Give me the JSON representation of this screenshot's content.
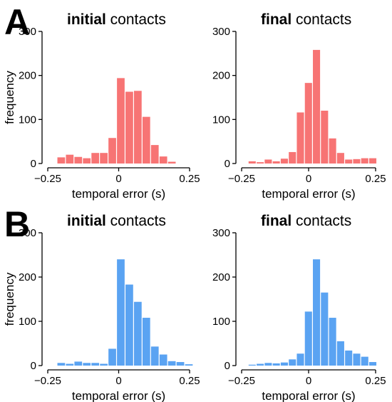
{
  "panels": [
    {
      "letter": "A"
    },
    {
      "letter": "B"
    }
  ],
  "colors": {
    "row_A": "#f77474",
    "row_B": "#5aa3f2"
  },
  "chart_data": [
    {
      "panel": "A",
      "type": "bar",
      "color": "#f77474",
      "title_bold": "initial",
      "title_rest": " contacts",
      "xlabel": "temporal error (s)",
      "ylabel": "frequency",
      "xlim": [
        -0.25,
        0.25
      ],
      "ylim": [
        0,
        300
      ],
      "xticks": [
        -0.25,
        0,
        0.25
      ],
      "xtick_labels": [
        "−0.25",
        "0",
        "0.25"
      ],
      "yticks": [
        0,
        100,
        200,
        300
      ],
      "ytick_labels": [
        "0",
        "100",
        "200",
        "300"
      ],
      "bin_width": 0.03,
      "bin_starts": [
        -0.216,
        -0.186,
        -0.156,
        -0.126,
        -0.096,
        -0.066,
        -0.036,
        -0.006,
        0.024,
        0.054,
        0.084,
        0.114,
        0.144,
        0.174
      ],
      "values": [
        14,
        20,
        15,
        12,
        24,
        24,
        58,
        194,
        163,
        165,
        106,
        42,
        16,
        4
      ]
    },
    {
      "panel": "A",
      "type": "bar",
      "color": "#f77474",
      "title_bold": "final",
      "title_rest": " contacts",
      "xlabel": "temporal error (s)",
      "ylabel": "",
      "xlim": [
        -0.25,
        0.25
      ],
      "ylim": [
        0,
        300
      ],
      "xticks": [
        -0.25,
        0,
        0.25
      ],
      "xtick_labels": [
        "−0.25",
        "0",
        "0.25"
      ],
      "yticks": [
        0,
        100,
        200,
        300
      ],
      "ytick_labels": [
        "0",
        "100",
        "200",
        "300"
      ],
      "bin_width": 0.03,
      "bin_starts": [
        -0.224,
        -0.194,
        -0.164,
        -0.134,
        -0.104,
        -0.074,
        -0.044,
        -0.014,
        0.016,
        0.046,
        0.076,
        0.106,
        0.136,
        0.166,
        0.196,
        0.226
      ],
      "values": [
        5,
        3,
        9,
        5,
        11,
        26,
        116,
        183,
        258,
        120,
        57,
        24,
        9,
        10,
        12,
        12
      ]
    },
    {
      "panel": "B",
      "type": "bar",
      "color": "#5aa3f2",
      "title_bold": "initial",
      "title_rest": " contacts",
      "xlabel": "temporal error (s)",
      "ylabel": "frequency",
      "xlim": [
        -0.25,
        0.25
      ],
      "ylim": [
        0,
        300
      ],
      "xticks": [
        -0.25,
        0,
        0.25
      ],
      "xtick_labels": [
        "−0.25",
        "0",
        "0.25"
      ],
      "yticks": [
        0,
        100,
        200,
        300
      ],
      "ytick_labels": [
        "0",
        "100",
        "200",
        "300"
      ],
      "bin_width": 0.03,
      "bin_starts": [
        -0.216,
        -0.186,
        -0.156,
        -0.126,
        -0.096,
        -0.066,
        -0.036,
        -0.006,
        0.024,
        0.054,
        0.084,
        0.114,
        0.144,
        0.174,
        0.204,
        0.234
      ],
      "values": [
        6,
        4,
        9,
        6,
        6,
        4,
        38,
        240,
        183,
        144,
        108,
        43,
        25,
        10,
        8,
        3
      ]
    },
    {
      "panel": "B",
      "type": "bar",
      "color": "#5aa3f2",
      "title_bold": "final",
      "title_rest": " contacts",
      "xlabel": "temporal error (s)",
      "ylabel": "",
      "xlim": [
        -0.25,
        0.25
      ],
      "ylim": [
        0,
        300
      ],
      "xticks": [
        -0.25,
        0,
        0.25
      ],
      "xtick_labels": [
        "−0.25",
        "0",
        "0.25"
      ],
      "yticks": [
        0,
        100,
        200,
        300
      ],
      "ytick_labels": [
        "0",
        "100",
        "200",
        "300"
      ],
      "bin_width": 0.03,
      "bin_starts": [
        -0.224,
        -0.194,
        -0.164,
        -0.134,
        -0.104,
        -0.074,
        -0.044,
        -0.014,
        0.016,
        0.046,
        0.076,
        0.106,
        0.136,
        0.166,
        0.196,
        0.226
      ],
      "values": [
        2,
        4,
        6,
        5,
        7,
        14,
        27,
        122,
        240,
        165,
        108,
        55,
        34,
        27,
        20,
        8
      ]
    }
  ]
}
